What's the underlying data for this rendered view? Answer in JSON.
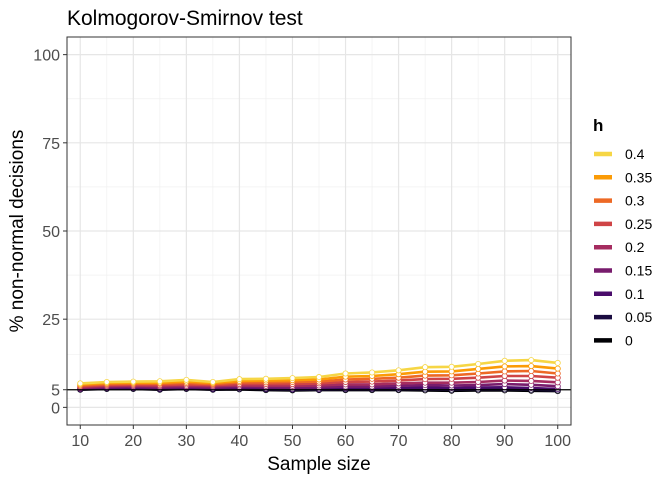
{
  "chart_data": {
    "type": "line",
    "title": "Kolmogorov-Smirnov test",
    "xlabel": "Sample size",
    "ylabel": "% non-normal decisions",
    "x": [
      10,
      15,
      20,
      25,
      30,
      35,
      40,
      45,
      50,
      55,
      60,
      65,
      70,
      75,
      80,
      85,
      90,
      95,
      100
    ],
    "xticks": [
      10,
      20,
      30,
      40,
      50,
      60,
      70,
      80,
      90,
      100
    ],
    "yticks": [
      0,
      5,
      25,
      50,
      75,
      100
    ],
    "xlim": [
      7.5,
      102.5
    ],
    "ylim": [
      -5,
      105
    ],
    "reference_line": 5,
    "grid": true,
    "legend": {
      "title": "h",
      "position": "right"
    },
    "series": [
      {
        "name": "0.4",
        "color": "#f6d645",
        "values": [
          6.8,
          7.2,
          7.3,
          7.4,
          7.8,
          7.2,
          8.0,
          8.1,
          8.3,
          8.6,
          9.6,
          9.9,
          10.5,
          11.4,
          11.5,
          12.3,
          13.2,
          13.4,
          12.6
        ]
      },
      {
        "name": "0.35",
        "color": "#fb9b06",
        "values": [
          6.5,
          6.9,
          7.0,
          7.0,
          7.3,
          6.9,
          7.5,
          7.6,
          7.7,
          7.9,
          8.7,
          8.9,
          9.4,
          10.1,
          10.2,
          10.9,
          11.6,
          11.7,
          11.0
        ]
      },
      {
        "name": "0.3",
        "color": "#ed6925",
        "values": [
          6.2,
          6.6,
          6.7,
          6.7,
          6.9,
          6.6,
          7.1,
          7.1,
          7.2,
          7.3,
          7.9,
          8.1,
          8.4,
          9.0,
          9.1,
          9.6,
          10.2,
          10.3,
          9.6
        ]
      },
      {
        "name": "0.25",
        "color": "#cf4446",
        "values": [
          5.9,
          6.3,
          6.4,
          6.3,
          6.5,
          6.3,
          6.6,
          6.6,
          6.6,
          6.8,
          7.2,
          7.3,
          7.6,
          8.0,
          8.1,
          8.4,
          8.9,
          8.9,
          8.4
        ]
      },
      {
        "name": "0.2",
        "color": "#a52c60",
        "values": [
          5.6,
          6.0,
          6.1,
          6.0,
          6.1,
          6.0,
          6.2,
          6.1,
          6.1,
          6.2,
          6.5,
          6.5,
          6.8,
          7.0,
          7.0,
          7.2,
          7.6,
          7.5,
          7.1
        ]
      },
      {
        "name": "0.15",
        "color": "#781c6d",
        "values": [
          5.4,
          5.7,
          5.8,
          5.6,
          5.8,
          5.6,
          5.8,
          5.7,
          5.6,
          5.7,
          5.9,
          5.9,
          6.1,
          6.3,
          6.2,
          6.3,
          6.6,
          6.4,
          6.0
        ]
      },
      {
        "name": "0.1",
        "color": "#4a0c6b",
        "values": [
          5.2,
          5.5,
          5.5,
          5.3,
          5.5,
          5.3,
          5.5,
          5.3,
          5.2,
          5.3,
          5.4,
          5.4,
          5.5,
          5.6,
          5.5,
          5.6,
          5.7,
          5.5,
          5.2
        ]
      },
      {
        "name": "0.05",
        "color": "#1b0c41",
        "values": [
          5.1,
          5.3,
          5.3,
          5.1,
          5.3,
          5.1,
          5.2,
          5.1,
          5.0,
          5.0,
          5.1,
          5.1,
          5.1,
          5.1,
          5.0,
          5.1,
          5.1,
          5.0,
          4.8
        ]
      },
      {
        "name": "0",
        "color": "#000004",
        "values": [
          5.0,
          5.2,
          5.2,
          5.0,
          5.2,
          5.0,
          5.1,
          4.9,
          4.8,
          4.9,
          4.9,
          4.9,
          4.9,
          4.8,
          4.7,
          4.8,
          4.8,
          4.7,
          4.6
        ]
      }
    ]
  }
}
